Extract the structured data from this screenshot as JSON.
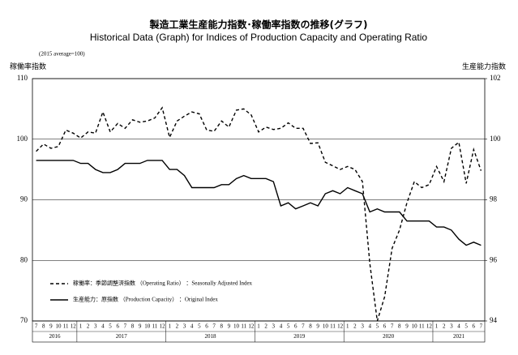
{
  "chart_data": {
    "type": "line",
    "title": "製造工業生産能力指数･稼働率指数の推移(グラフ)",
    "subtitle": "Historical Data (Graph) for Indices of Production Capacity and Operating Ratio",
    "note": "(2015 average=100)",
    "ylabel": "稼働率指数",
    "y2label": "生産能力指数",
    "categories": [
      "7",
      "8",
      "9",
      "10",
      "11",
      "12",
      "1",
      "2",
      "3",
      "4",
      "5",
      "6",
      "7",
      "8",
      "9",
      "10",
      "11",
      "12",
      "1",
      "2",
      "3",
      "4",
      "5",
      "6",
      "7",
      "8",
      "9",
      "10",
      "11",
      "12",
      "1",
      "2",
      "3",
      "4",
      "5",
      "6",
      "7",
      "8",
      "9",
      "10",
      "11",
      "12",
      "1",
      "2",
      "3",
      "4",
      "5",
      "6",
      "7",
      "8",
      "9",
      "10",
      "11",
      "12",
      "1",
      "2",
      "3",
      "4",
      "5",
      "6",
      "7"
    ],
    "years": [
      "2016",
      "2017",
      "2018",
      "2019",
      "2020",
      "2021"
    ],
    "ylim": [
      70,
      110
    ],
    "yticks": [
      70,
      80,
      90,
      100,
      110
    ],
    "y2lim": [
      94,
      102
    ],
    "y2ticks": [
      94,
      96,
      98,
      100,
      102
    ],
    "grid": true,
    "legend": "lower left",
    "series": [
      {
        "name": "稼働率：季節調整済指数 （Operating Ratio） ：Seasonally Adjusted Index",
        "color": "#000000",
        "dashed": true,
        "axis": "y",
        "values": [
          98,
          99.2,
          98.5,
          98.8,
          101.5,
          101,
          100.2,
          101.2,
          101,
          104.5,
          101.2,
          102.6,
          101.8,
          103.2,
          102.8,
          103,
          103.5,
          105.2,
          100.3,
          103,
          103.8,
          104.5,
          104.2,
          101.5,
          101.3,
          103,
          102,
          104.8,
          105,
          104,
          101.2,
          102,
          101.6,
          101.8,
          102.7,
          101.8,
          101.8,
          99.3,
          99.4,
          96.2,
          95.6,
          95,
          95.5,
          95,
          93,
          79.5,
          70,
          74,
          82,
          85,
          89.5,
          93,
          92,
          92.5,
          95.5,
          93,
          98.5,
          99.5,
          92.7,
          98.3,
          94.8
        ]
      },
      {
        "name": "生産能力：原指数 （Production Capacity） ：Original Index",
        "color": "#000000",
        "dashed": false,
        "axis": "y2",
        "values": [
          99.3,
          99.3,
          99.3,
          99.3,
          99.3,
          99.3,
          99.2,
          99.2,
          99.0,
          98.9,
          98.9,
          99.0,
          99.2,
          99.2,
          99.2,
          99.3,
          99.3,
          99.3,
          99.0,
          99.0,
          98.8,
          98.4,
          98.4,
          98.4,
          98.4,
          98.5,
          98.5,
          98.7,
          98.8,
          98.7,
          98.7,
          98.7,
          98.6,
          97.8,
          97.9,
          97.7,
          97.8,
          97.9,
          97.8,
          98.2,
          98.3,
          98.2,
          98.4,
          98.3,
          98.2,
          97.6,
          97.7,
          97.6,
          97.6,
          97.6,
          97.3,
          97.3,
          97.3,
          97.3,
          97.1,
          97.1,
          97.0,
          96.7,
          96.5,
          96.6,
          96.5
        ]
      }
    ]
  }
}
